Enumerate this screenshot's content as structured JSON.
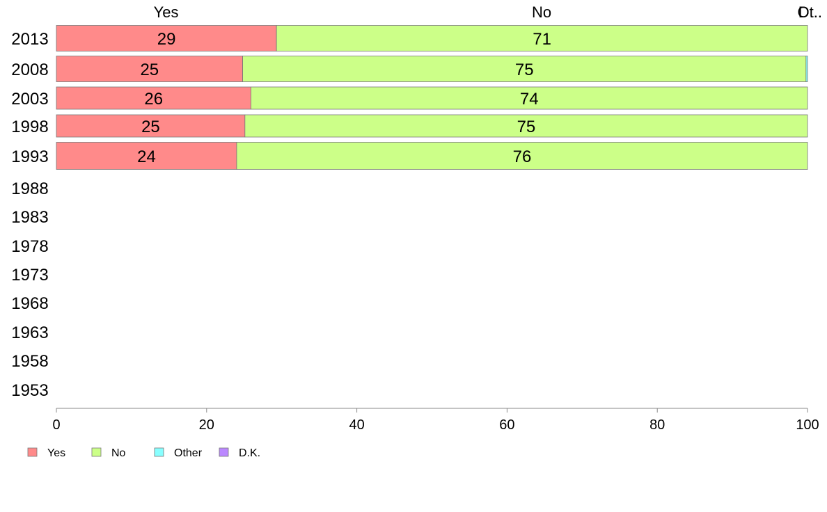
{
  "chart_data": {
    "type": "bar",
    "orientation": "horizontal",
    "stacked": true,
    "categories": [
      "2013",
      "2008",
      "2003",
      "1998",
      "1993",
      "1988",
      "1983",
      "1978",
      "1973",
      "1968",
      "1963",
      "1958",
      "1953"
    ],
    "series": [
      {
        "name": "Yes",
        "color": "#ff8a8a",
        "values": [
          29.3,
          24.8,
          25.9,
          25.1,
          24.0,
          null,
          null,
          null,
          null,
          null,
          null,
          null,
          null
        ]
      },
      {
        "name": "No",
        "color": "#ccff88",
        "values": [
          70.7,
          75.0,
          74.1,
          74.9,
          76.0,
          null,
          null,
          null,
          null,
          null,
          null,
          null,
          null
        ]
      },
      {
        "name": "Other",
        "color": "#88ffff",
        "values": [
          0,
          0.2,
          0,
          0,
          0,
          null,
          null,
          null,
          null,
          null,
          null,
          null,
          null
        ]
      },
      {
        "name": "D.K.",
        "color": "#bb88ff",
        "values": [
          0,
          0,
          0,
          0,
          0,
          null,
          null,
          null,
          null,
          null,
          null,
          null,
          null
        ]
      }
    ],
    "data_labels": [
      [
        "29",
        "71"
      ],
      [
        "25",
        "75"
      ],
      [
        "26",
        "74"
      ],
      [
        "25",
        "75"
      ],
      [
        "24",
        "76"
      ]
    ],
    "top_labels": [
      {
        "text": "Yes",
        "value": 14.6
      },
      {
        "text": "No",
        "value": 64.6
      },
      {
        "text": "Ot..",
        "value": 99.9
      },
      {
        "text": "D...",
        "value": 100
      }
    ],
    "xlim": [
      0,
      100
    ],
    "xticks": [
      0,
      20,
      40,
      60,
      80,
      100
    ],
    "tick_labels": [
      "0",
      "20",
      "40",
      "60",
      "80",
      "100"
    ],
    "legend_position": "bottom-left",
    "grid": false
  }
}
